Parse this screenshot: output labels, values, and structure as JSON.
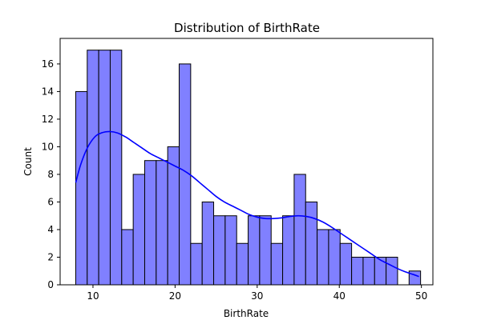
{
  "chart_data": {
    "type": "bar",
    "title": "Distribution of BirthRate",
    "xlabel": "BirthRate",
    "ylabel": "Count",
    "xlim": [
      6.0,
      51.4
    ],
    "ylim": [
      0,
      17.85
    ],
    "xticks": [
      10,
      20,
      30,
      40,
      50
    ],
    "yticks": [
      0,
      2,
      4,
      6,
      8,
      10,
      12,
      14,
      16
    ],
    "bin_start": 7.9,
    "bin_width": 1.4,
    "values": [
      14,
      17,
      17,
      17,
      4,
      8,
      9,
      9,
      10,
      16,
      3,
      6,
      5,
      5,
      3,
      5,
      5,
      3,
      5,
      8,
      6,
      4,
      4,
      3,
      2,
      2,
      2,
      2,
      0,
      1
    ],
    "kde": {
      "x": [
        7.9,
        8.5,
        9.3,
        10.2,
        11.0,
        12.0,
        13.0,
        14.0,
        15.0,
        16.0,
        17.0,
        18.0,
        19.0,
        20.0,
        21.0,
        22.0,
        23.0,
        24.0,
        25.0,
        26.0,
        27.0,
        28.0,
        29.0,
        30.0,
        31.0,
        32.0,
        33.0,
        34.0,
        35.0,
        36.0,
        37.0,
        38.0,
        39.0,
        40.0,
        41.0,
        42.0,
        43.0,
        44.0,
        45.0,
        46.0,
        47.0,
        48.0,
        49.0,
        49.7
      ],
      "y": [
        7.4,
        8.7,
        9.9,
        10.7,
        11.0,
        11.1,
        11.0,
        10.7,
        10.3,
        9.9,
        9.5,
        9.2,
        8.9,
        8.6,
        8.3,
        7.9,
        7.4,
        6.9,
        6.4,
        6.0,
        5.7,
        5.4,
        5.1,
        4.9,
        4.8,
        4.8,
        4.85,
        4.95,
        5.0,
        4.95,
        4.8,
        4.55,
        4.2,
        3.8,
        3.4,
        3.0,
        2.6,
        2.2,
        1.8,
        1.5,
        1.2,
        0.95,
        0.75,
        0.6
      ]
    },
    "colors": {
      "bar_fill": "#8080ff",
      "bar_edge": "#000000",
      "kde_line": "#0000ff"
    },
    "grid": false,
    "legend": "none"
  }
}
